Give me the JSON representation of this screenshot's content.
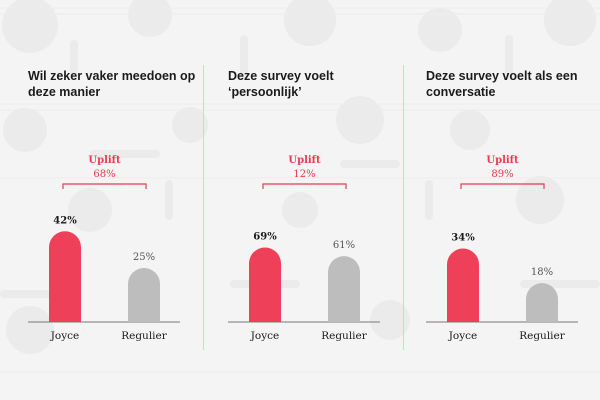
{
  "uplift_label": "Uplift",
  "colors": {
    "joyce": "#ee4058",
    "regulier": "#bdbdbd",
    "uplift": "#e63a52",
    "text": "#1b1b1b",
    "muted": "#555555"
  },
  "chart_data": [
    {
      "type": "bar",
      "title": "Wil zeker vaker meedoen op deze manier",
      "categories": [
        "Joyce",
        "Regulier"
      ],
      "values": [
        42,
        25
      ],
      "value_labels": [
        "42%",
        "25%"
      ],
      "uplift": "68%",
      "ylim": [
        0,
        50
      ]
    },
    {
      "type": "bar",
      "title": "Deze survey voelt ‘persoonlijk’",
      "categories": [
        "Joyce",
        "Regulier"
      ],
      "values": [
        69,
        61
      ],
      "value_labels": [
        "69%",
        "61%"
      ],
      "uplift": "12%",
      "ylim": [
        0,
        100
      ]
    },
    {
      "type": "bar",
      "title": "Deze survey voelt als een conversatie",
      "categories": [
        "Joyce",
        "Regulier"
      ],
      "values": [
        34,
        18
      ],
      "value_labels": [
        "34%",
        "18%"
      ],
      "uplift": "89%",
      "ylim": [
        0,
        50
      ]
    }
  ]
}
